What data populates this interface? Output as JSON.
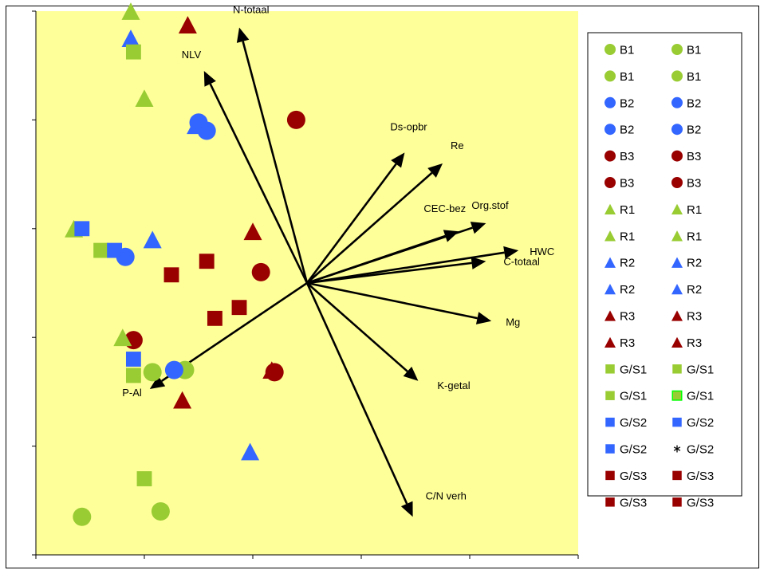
{
  "chart_data": {
    "type": "scatter",
    "title": "",
    "xlabel": "",
    "ylabel": "",
    "xlim": [
      0,
      10
    ],
    "ylim": [
      0,
      10
    ],
    "grid": false,
    "legend_position": "right",
    "plot_background": "#ffff99",
    "colors": {
      "green": "#99cc33",
      "blue": "#3366ff",
      "darkred": "#990000",
      "vector": "#000000"
    },
    "origin": [
      5.0,
      5.0
    ],
    "vectors": [
      {
        "label": "N-totaal",
        "end": [
          3.75,
          9.7
        ]
      },
      {
        "label": "NLV",
        "end": [
          3.1,
          8.9
        ]
      },
      {
        "label": "Ds-opbr",
        "end": [
          6.8,
          7.4
        ]
      },
      {
        "label": "Re",
        "end": [
          7.5,
          7.2
        ]
      },
      {
        "label": "CEC-bez",
        "end": [
          7.8,
          5.95
        ]
      },
      {
        "label": "Org.stof",
        "end": [
          8.3,
          6.1
        ]
      },
      {
        "label": "HWC",
        "end": [
          8.9,
          5.6
        ]
      },
      {
        "label": "C-totaal",
        "end": [
          8.3,
          5.4
        ]
      },
      {
        "label": "Mg",
        "end": [
          8.4,
          4.3
        ]
      },
      {
        "label": "K-getal",
        "end": [
          7.05,
          3.2
        ]
      },
      {
        "label": "C/N verh",
        "end": [
          6.95,
          0.7
        ]
      },
      {
        "label": "P-Al",
        "end": [
          2.1,
          3.05
        ]
      }
    ],
    "series": [
      {
        "name": "B1",
        "marker": "circle",
        "color": "green",
        "points": [
          [
            0.85,
            0.7
          ],
          [
            2.15,
            3.36
          ],
          [
            2.3,
            0.8
          ],
          [
            2.75,
            3.4
          ]
        ]
      },
      {
        "name": "B2",
        "marker": "circle",
        "color": "blue",
        "points": [
          [
            1.65,
            5.48
          ],
          [
            2.55,
            3.4
          ],
          [
            3.0,
            7.95
          ],
          [
            3.15,
            7.8
          ]
        ]
      },
      {
        "name": "B3",
        "marker": "circle",
        "color": "darkred",
        "points": [
          [
            1.8,
            3.95
          ],
          [
            4.15,
            5.2
          ],
          [
            4.4,
            3.36
          ],
          [
            4.8,
            8.0
          ]
        ]
      },
      {
        "name": "R1",
        "marker": "triangle",
        "color": "green",
        "points": [
          [
            0.7,
            6.0
          ],
          [
            1.6,
            4.0
          ],
          [
            1.75,
            10.0
          ],
          [
            2.0,
            8.4
          ]
        ]
      },
      {
        "name": "R2",
        "marker": "triangle",
        "color": "blue",
        "points": [
          [
            1.75,
            9.5
          ],
          [
            2.15,
            5.8
          ],
          [
            2.95,
            7.9
          ],
          [
            3.95,
            1.9
          ]
        ]
      },
      {
        "name": "R3",
        "marker": "triangle",
        "color": "darkred",
        "points": [
          [
            2.7,
            2.85
          ],
          [
            2.8,
            9.75
          ],
          [
            4.0,
            5.95
          ],
          [
            4.35,
            3.4
          ]
        ]
      },
      {
        "name": "G/S1",
        "marker": "square",
        "color": "green",
        "points": [
          [
            1.2,
            5.6
          ],
          [
            1.8,
            9.25
          ],
          [
            1.8,
            3.3
          ],
          [
            2.0,
            1.4
          ]
        ]
      },
      {
        "name": "G/S2",
        "marker": "square",
        "color": "blue",
        "points": [
          [
            0.85,
            6.0
          ],
          [
            1.45,
            5.6
          ],
          [
            1.8,
            3.6
          ]
        ]
      },
      {
        "name": "G/S3",
        "marker": "square",
        "color": "darkred",
        "points": [
          [
            2.5,
            5.15
          ],
          [
            3.15,
            5.4
          ],
          [
            3.3,
            4.35
          ],
          [
            3.75,
            4.55
          ]
        ]
      }
    ],
    "legend": [
      {
        "label": "B1",
        "marker": "circle",
        "color": "green"
      },
      {
        "label": "B1",
        "marker": "circle",
        "color": "green"
      },
      {
        "label": "B1",
        "marker": "circle",
        "color": "green"
      },
      {
        "label": "B1",
        "marker": "circle",
        "color": "green"
      },
      {
        "label": "B2",
        "marker": "circle",
        "color": "blue"
      },
      {
        "label": "B2",
        "marker": "circle",
        "color": "blue"
      },
      {
        "label": "B2",
        "marker": "circle",
        "color": "blue"
      },
      {
        "label": "B2",
        "marker": "circle",
        "color": "blue"
      },
      {
        "label": "B3",
        "marker": "circle",
        "color": "darkred"
      },
      {
        "label": "B3",
        "marker": "circle",
        "color": "darkred"
      },
      {
        "label": "B3",
        "marker": "circle",
        "color": "darkred"
      },
      {
        "label": "B3",
        "marker": "circle",
        "color": "darkred"
      },
      {
        "label": "R1",
        "marker": "triangle",
        "color": "green"
      },
      {
        "label": "R1",
        "marker": "triangle",
        "color": "green"
      },
      {
        "label": "R1",
        "marker": "triangle",
        "color": "green"
      },
      {
        "label": "R1",
        "marker": "triangle",
        "color": "green"
      },
      {
        "label": "R2",
        "marker": "triangle",
        "color": "blue"
      },
      {
        "label": "R2",
        "marker": "triangle",
        "color": "blue"
      },
      {
        "label": "R2",
        "marker": "triangle",
        "color": "blue"
      },
      {
        "label": "R2",
        "marker": "triangle",
        "color": "blue"
      },
      {
        "label": "R3",
        "marker": "triangle",
        "color": "darkred"
      },
      {
        "label": "R3",
        "marker": "triangle",
        "color": "darkred"
      },
      {
        "label": "R3",
        "marker": "triangle",
        "color": "darkred"
      },
      {
        "label": "R3",
        "marker": "triangle",
        "color": "darkred"
      },
      {
        "label": "G/S1",
        "marker": "square",
        "color": "green"
      },
      {
        "label": "G/S1",
        "marker": "square",
        "color": "green"
      },
      {
        "label": "G/S1",
        "marker": "square",
        "color": "green"
      },
      {
        "label": "G/S1",
        "marker": "square-outlined",
        "color": "green"
      },
      {
        "label": "G/S2",
        "marker": "square",
        "color": "blue"
      },
      {
        "label": "G/S2",
        "marker": "square",
        "color": "blue"
      },
      {
        "label": "G/S2",
        "marker": "square",
        "color": "blue"
      },
      {
        "label": "G/S2",
        "marker": "star",
        "color": "black"
      },
      {
        "label": "G/S3",
        "marker": "square",
        "color": "darkred"
      },
      {
        "label": "G/S3",
        "marker": "square",
        "color": "darkred"
      },
      {
        "label": "G/S3",
        "marker": "square",
        "color": "darkred"
      },
      {
        "label": "G/S3",
        "marker": "square",
        "color": "darkred"
      }
    ]
  }
}
